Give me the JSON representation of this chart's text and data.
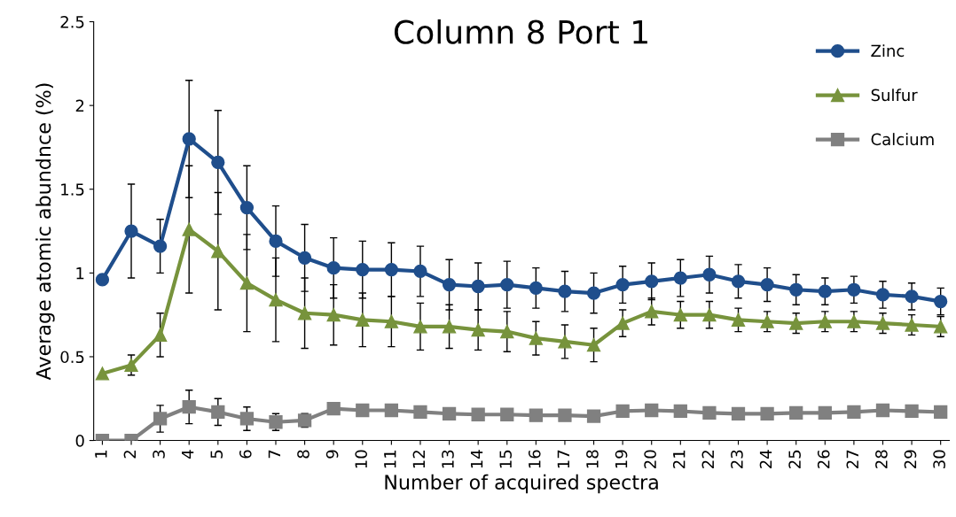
{
  "chart_data": {
    "type": "line",
    "title": "Column 8 Port 1",
    "xlabel": "Number of acquired spectra",
    "ylabel": "Average atomic abundnce (%)",
    "categories": [
      "1",
      "2",
      "3",
      "4",
      "5",
      "6",
      "7",
      "8",
      "9",
      "10",
      "11",
      "12",
      "13",
      "14",
      "15",
      "16",
      "17",
      "18",
      "19",
      "20",
      "21",
      "22",
      "23",
      "24",
      "25",
      "26",
      "27",
      "28",
      "29",
      "30"
    ],
    "series": [
      {
        "name": "Zinc",
        "color": "#1f4e8c",
        "marker": "circle",
        "values": [
          0.96,
          1.25,
          1.16,
          1.8,
          1.66,
          1.39,
          1.19,
          1.09,
          1.03,
          1.02,
          1.02,
          1.01,
          0.93,
          0.92,
          0.93,
          0.91,
          0.89,
          0.88,
          0.93,
          0.95,
          0.97,
          0.99,
          0.95,
          0.93,
          0.9,
          0.89,
          0.9,
          0.87,
          0.86,
          0.83
        ],
        "errors": [
          null,
          0.28,
          0.16,
          0.35,
          0.31,
          0.25,
          0.21,
          0.2,
          0.18,
          0.17,
          0.16,
          0.15,
          0.15,
          0.14,
          0.14,
          0.12,
          0.12,
          0.12,
          0.11,
          0.11,
          0.11,
          0.11,
          0.1,
          0.1,
          0.09,
          0.08,
          0.08,
          0.08,
          0.08,
          0.08
        ]
      },
      {
        "name": "Sulfur",
        "color": "#77933c",
        "marker": "triangle",
        "values": [
          0.4,
          0.45,
          0.63,
          1.26,
          1.13,
          0.94,
          0.84,
          0.76,
          0.75,
          0.72,
          0.71,
          0.68,
          0.68,
          0.66,
          0.65,
          0.61,
          0.59,
          0.57,
          0.7,
          0.77,
          0.75,
          0.75,
          0.72,
          0.71,
          0.7,
          0.71,
          0.71,
          0.7,
          0.69,
          0.68
        ],
        "errors": [
          null,
          0.06,
          0.13,
          0.38,
          0.35,
          0.29,
          0.25,
          0.21,
          0.18,
          0.16,
          0.15,
          0.14,
          0.13,
          0.12,
          0.12,
          0.1,
          0.1,
          0.1,
          0.08,
          0.08,
          0.08,
          0.08,
          0.07,
          0.06,
          0.06,
          0.06,
          0.06,
          0.06,
          0.06,
          0.06
        ]
      },
      {
        "name": "Calcium",
        "color": "#808080",
        "marker": "square",
        "values": [
          0,
          0,
          0.13,
          0.2,
          0.17,
          0.13,
          0.11,
          0.12,
          0.19,
          0.18,
          0.18,
          0.17,
          0.16,
          0.155,
          0.155,
          0.15,
          0.15,
          0.145,
          0.175,
          0.18,
          0.175,
          0.165,
          0.16,
          0.16,
          0.165,
          0.165,
          0.17,
          0.18,
          0.175,
          0.17
        ],
        "errors": [
          null,
          null,
          0.08,
          0.1,
          0.08,
          0.07,
          0.05,
          0.04,
          0.02,
          0.02,
          0.02,
          0.02,
          0.02,
          0.02,
          0.02,
          0.02,
          0.02,
          0.02,
          0.02,
          0.02,
          0.02,
          0.02,
          0.02,
          0.02,
          0.02,
          0.02,
          0.02,
          0.02,
          0.02,
          0.02
        ]
      }
    ],
    "ylim": [
      0,
      2.5
    ],
    "yticks": [
      0,
      0.5,
      1,
      1.5,
      2,
      2.5
    ],
    "grid": false,
    "legend": "top right",
    "line_style": "solid"
  }
}
